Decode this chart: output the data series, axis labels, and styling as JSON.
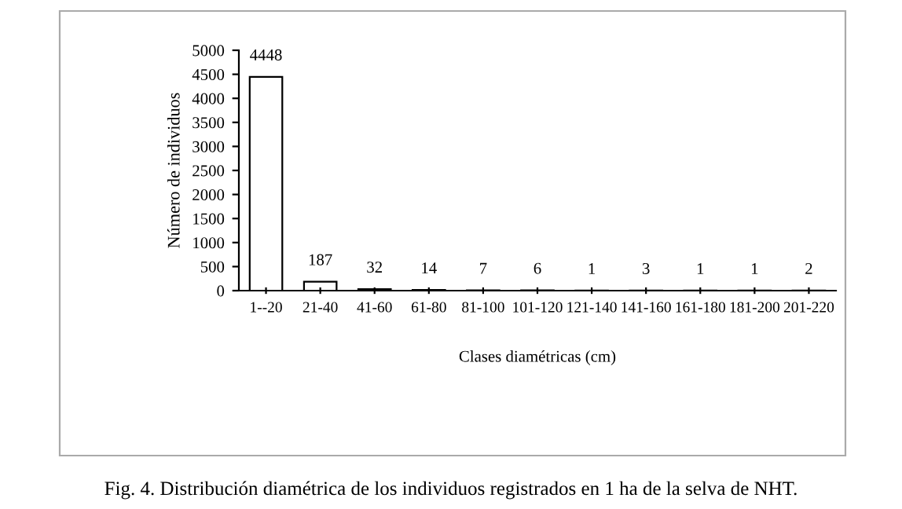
{
  "chart_data": {
    "type": "bar",
    "categories": [
      "1--20",
      "21-40",
      "41-60",
      "61-80",
      "81-100",
      "101-120",
      "121-140",
      "141-160",
      "161-180",
      "181-200",
      "201-220"
    ],
    "values": [
      4448,
      187,
      32,
      14,
      7,
      6,
      1,
      3,
      1,
      1,
      2
    ],
    "color": "#ffffff",
    "data_labels": true,
    "xlabel": "Clases diamétricas (cm)",
    "ylabel": "Número de individuos",
    "ylim": [
      0,
      5000
    ],
    "yticks": [
      0,
      500,
      1000,
      1500,
      2000,
      2500,
      3000,
      3500,
      4000,
      4500,
      5000
    ],
    "grid": false,
    "annotations": [
      "Fig. 4. Distribución diamétrica de los individuos registrados en 1 ha de la selva de NHT."
    ]
  }
}
